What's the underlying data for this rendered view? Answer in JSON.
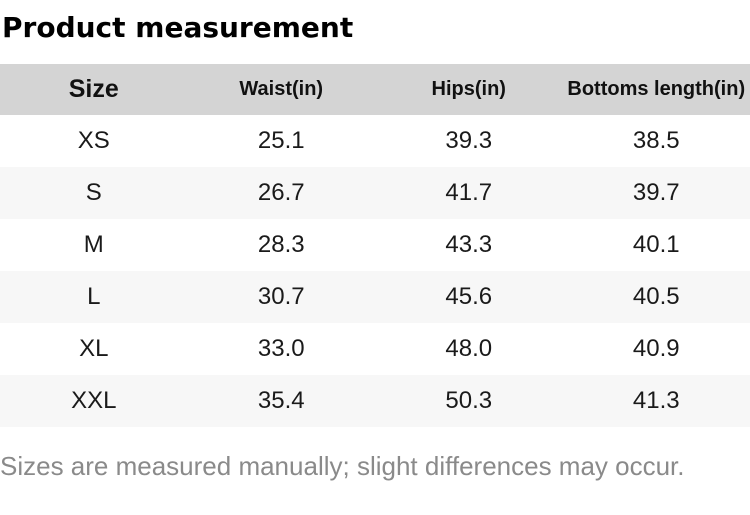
{
  "title": "Product measurement",
  "table": {
    "columns": [
      "Size",
      "Waist(in)",
      "Hips(in)",
      "Bottoms length(in)"
    ],
    "rows": [
      [
        "XS",
        "25.1",
        "39.3",
        "38.5"
      ],
      [
        "S",
        "26.7",
        "41.7",
        "39.7"
      ],
      [
        "M",
        "28.3",
        "43.3",
        "40.1"
      ],
      [
        "L",
        "30.7",
        "45.6",
        "40.5"
      ],
      [
        "XL",
        "33.0",
        "48.0",
        "40.9"
      ],
      [
        "XXL",
        "35.4",
        "50.3",
        "41.3"
      ]
    ]
  },
  "note": "Sizes are measured manually; slight differences may occur.",
  "colors": {
    "header_bg": "#d4d4d4",
    "row_stripe_bg": "#f7f7f7",
    "note_text": "#8a8a8a"
  }
}
